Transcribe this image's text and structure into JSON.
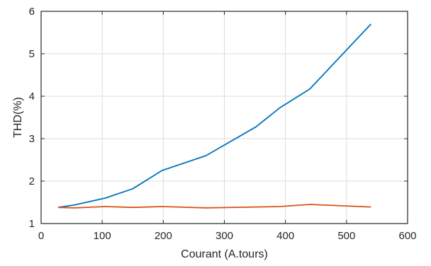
{
  "chart_data": {
    "type": "line",
    "title": "",
    "xlabel": "Courant (A.tours)",
    "ylabel": "THD(%)",
    "xlim": [
      0,
      600
    ],
    "ylim": [
      1,
      6
    ],
    "xticks": [
      0,
      100,
      200,
      300,
      400,
      500,
      600
    ],
    "yticks": [
      1,
      2,
      3,
      4,
      5,
      6
    ],
    "grid": true,
    "series": [
      {
        "color": "#0072BD",
        "x": [
          28,
          55,
          105,
          150,
          198,
          270,
          352,
          390,
          440,
          540
        ],
        "y": [
          1.38,
          1.44,
          1.6,
          1.82,
          2.25,
          2.6,
          3.28,
          3.72,
          4.17,
          5.7
        ]
      },
      {
        "color": "#D95319",
        "x": [
          28,
          55,
          105,
          150,
          198,
          270,
          352,
          390,
          440,
          540
        ],
        "y": [
          1.38,
          1.37,
          1.4,
          1.38,
          1.4,
          1.37,
          1.39,
          1.4,
          1.45,
          1.39
        ]
      }
    ]
  }
}
